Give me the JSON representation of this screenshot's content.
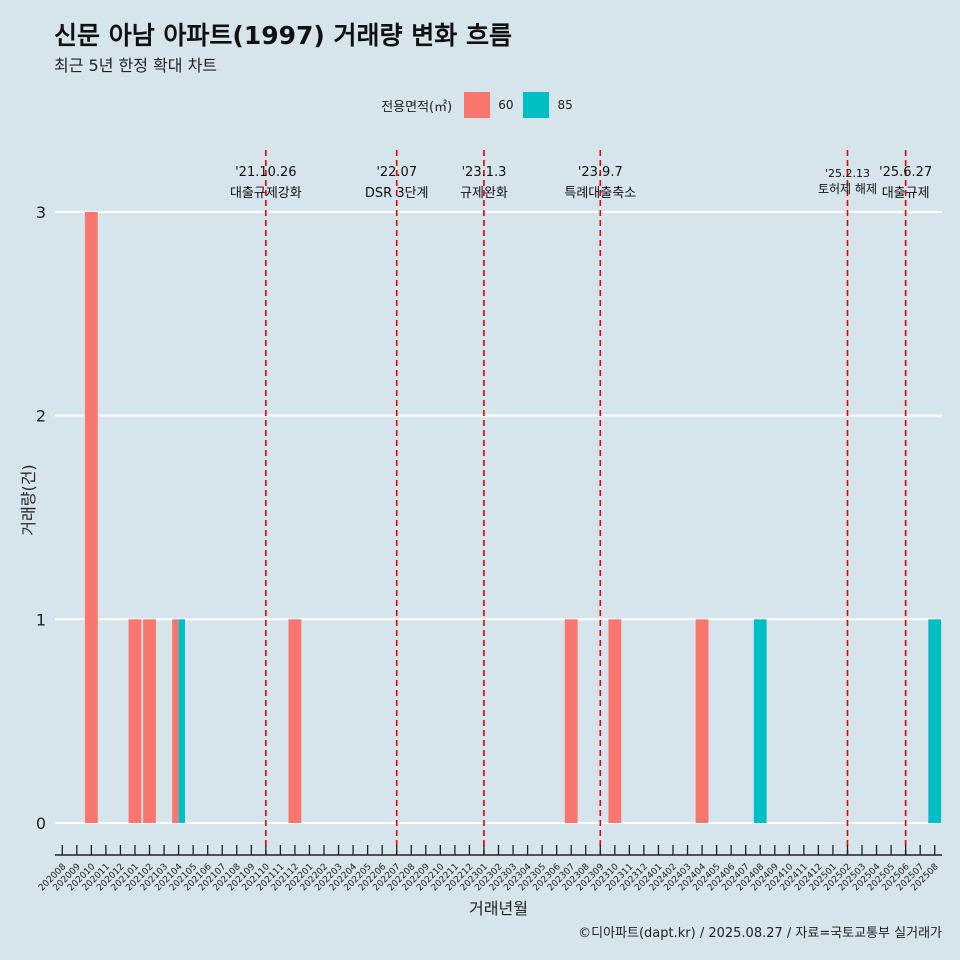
{
  "chart_data": {
    "type": "bar",
    "title": "신문 아남 아파트(1997) 거래량 변화 흐름",
    "subtitle": "최근 5년 한정 확대 차트",
    "xlabel": "거래년월",
    "ylabel": "거래량(건)",
    "ylim": [
      0,
      3
    ],
    "y_ticks": [
      "0",
      "1",
      "2",
      "3"
    ],
    "legend": {
      "title": "전용면적(㎡)",
      "placement": "top",
      "entries": [
        {
          "name": "60",
          "color": "#f8766d"
        },
        {
          "name": "85",
          "color": "#00bfc4"
        }
      ]
    },
    "categories": [
      "202008",
      "202009",
      "202010",
      "202011",
      "202012",
      "202101",
      "202102",
      "202103",
      "202104",
      "202105",
      "202106",
      "202107",
      "202108",
      "202109",
      "202110",
      "202111",
      "202112",
      "202201",
      "202202",
      "202203",
      "202204",
      "202205",
      "202206",
      "202207",
      "202208",
      "202209",
      "202210",
      "202211",
      "202212",
      "202301",
      "202302",
      "202303",
      "202304",
      "202305",
      "202306",
      "202307",
      "202308",
      "202309",
      "202310",
      "202311",
      "202312",
      "202401",
      "202402",
      "202403",
      "202404",
      "202405",
      "202406",
      "202407",
      "202408",
      "202409",
      "202410",
      "202411",
      "202412",
      "202501",
      "202502",
      "202503",
      "202504",
      "202505",
      "202506",
      "202507",
      "202508"
    ],
    "series": [
      {
        "name": "60",
        "color": "#f8766d",
        "points": [
          {
            "x": "202010",
            "y": 3
          },
          {
            "x": "202101",
            "y": 1
          },
          {
            "x": "202102",
            "y": 1
          },
          {
            "x": "202104",
            "y": 1
          },
          {
            "x": "202112",
            "y": 1
          },
          {
            "x": "202307",
            "y": 1
          },
          {
            "x": "202310",
            "y": 1
          },
          {
            "x": "202404",
            "y": 1
          }
        ]
      },
      {
        "name": "85",
        "color": "#00bfc4",
        "points": [
          {
            "x": "202104",
            "y": 1
          },
          {
            "x": "202408",
            "y": 1
          },
          {
            "x": "202508",
            "y": 1
          }
        ]
      }
    ],
    "events": [
      {
        "date": "'21.10.26",
        "label": "대출규제강화",
        "x": "202110"
      },
      {
        "date": "'22.07",
        "label": "DSR 3단계",
        "x": "202207"
      },
      {
        "date": "'23.1.3",
        "label": "규제완화",
        "x": "202301"
      },
      {
        "date": "'23.9.7",
        "label": "특례대출축소",
        "x": "202309"
      },
      {
        "date": "'25.2.13",
        "label": "토허제 해제",
        "x": "202502"
      },
      {
        "date": "'25.6.27",
        "label": "대출규제",
        "x": "202506"
      }
    ],
    "event_line_color": "#ee0000",
    "grid": "horizontal"
  },
  "caption": "©디아파트(dapt.kr) / 2025.08.27 / 자료=국토교통부 실거래가"
}
